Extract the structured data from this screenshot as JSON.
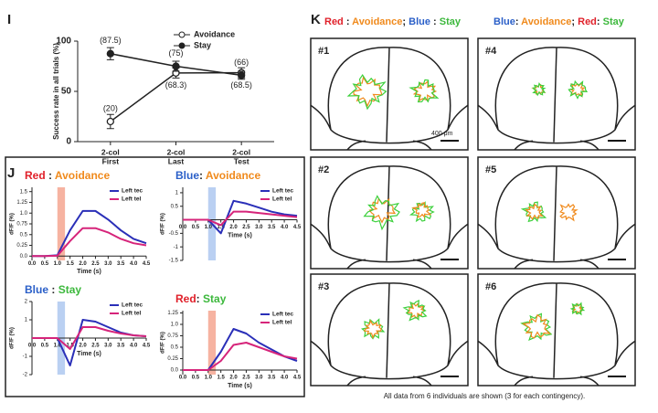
{
  "chart_data": [
    {
      "type": "line",
      "panel": "I",
      "ylabel": "Success rate in all trials (%)",
      "categories": [
        [
          "2-col",
          "First"
        ],
        [
          "2-col",
          "Last"
        ],
        [
          "2-col",
          "Test"
        ]
      ],
      "ylim": [
        0,
        100
      ],
      "yticks": [
        0,
        50,
        100
      ],
      "series": [
        {
          "name": "Avoidance",
          "color": "#222222",
          "marker": "open",
          "values": [
            20,
            68.3,
            68.5
          ],
          "errors": [
            7,
            5,
            5
          ],
          "value_labels": [
            "(20)",
            "(68.3)",
            "(68.5)"
          ]
        },
        {
          "name": "Stay",
          "color": "#222222",
          "marker": "filled",
          "values": [
            87.5,
            75,
            66
          ],
          "errors": [
            6,
            5,
            4
          ],
          "value_labels": [
            "(87.5)",
            "(75)",
            "(66)"
          ]
        }
      ]
    },
    {
      "type": "trace",
      "panel": "J",
      "title": [
        {
          "text": "Red",
          "color": "#e0202a"
        },
        {
          "text": " : ",
          "color": "#222222"
        },
        {
          "text": "Avoidance",
          "color": "#f08a1c"
        }
      ],
      "ylabel": "dF/F (%)",
      "xlabel": "Time (s)",
      "shade": {
        "x": [
          1.0,
          1.3
        ],
        "color": "#f4a08a"
      },
      "x": [
        0,
        0.5,
        1,
        1.5,
        2,
        2.5,
        3,
        3.5,
        4,
        4.5
      ],
      "xlim": [
        0,
        4.5
      ],
      "xticks": [
        {
          "value": 0,
          "label": "0.0"
        },
        0.5,
        {
          "value": 1,
          "label": "1.0"
        },
        1.5,
        {
          "value": 2,
          "label": "2.0"
        },
        2.5,
        {
          "value": 3,
          "label": "3.0"
        },
        3.5,
        {
          "value": 4,
          "label": "4.0"
        },
        4.5
      ],
      "ylim": [
        -0.1,
        1.6
      ],
      "yticks": [
        {
          "value": 0,
          "label": "0.0"
        },
        0.25,
        0.5,
        0.75,
        {
          "value": 1,
          "label": "1.0"
        },
        1.25,
        1.5
      ],
      "series": [
        {
          "name": "Left tec",
          "color": "#2a2fb8",
          "values": [
            0,
            0,
            0.02,
            0.6,
            1.05,
            1.05,
            0.85,
            0.6,
            0.4,
            0.3
          ]
        },
        {
          "name": "Left tel",
          "color": "#d6247a",
          "values": [
            0,
            0,
            0.01,
            0.35,
            0.65,
            0.65,
            0.55,
            0.4,
            0.3,
            0.25
          ]
        }
      ]
    },
    {
      "type": "trace",
      "panel": "J",
      "title": [
        {
          "text": "Blue",
          "color": "#2a5fc8"
        },
        {
          "text": ": ",
          "color": "#222222"
        },
        {
          "text": "Avoidance",
          "color": "#f08a1c"
        }
      ],
      "ylabel": "dF/F (%)",
      "xlabel": "Time (s)",
      "shade": {
        "x": [
          1.0,
          1.3
        ],
        "color": "#a9c4ef"
      },
      "x": [
        0,
        0.5,
        1,
        1.5,
        2,
        2.5,
        3,
        3.5,
        4,
        4.5
      ],
      "xlim": [
        0,
        4.5
      ],
      "xticks": [
        {
          "value": 0,
          "label": "0.0"
        },
        0.5,
        {
          "value": 1,
          "label": "1.0"
        },
        1.5,
        {
          "value": 2,
          "label": "2.0"
        },
        2.5,
        {
          "value": 3,
          "label": "3.0"
        },
        3.5,
        {
          "value": 4,
          "label": "4.0"
        },
        4.5
      ],
      "ylim": [
        -1.5,
        1.2
      ],
      "yticks": [
        -1.5,
        -1,
        -0.5,
        0.5,
        1
      ],
      "series": [
        {
          "name": "Left tec",
          "color": "#2a2fb8",
          "values": [
            0,
            0,
            0,
            -0.5,
            0.7,
            0.6,
            0.45,
            0.3,
            0.2,
            0.15
          ]
        },
        {
          "name": "Left tel",
          "color": "#d6247a",
          "values": [
            0,
            0,
            0,
            -0.2,
            0.3,
            0.3,
            0.25,
            0.2,
            0.15,
            0.1
          ]
        }
      ]
    },
    {
      "type": "trace",
      "panel": "J",
      "title": [
        {
          "text": "Blue",
          "color": "#2a5fc8"
        },
        {
          "text": " : ",
          "color": "#222222"
        },
        {
          "text": "Stay",
          "color": "#3cb83c"
        }
      ],
      "ylabel": "dF/F (%)",
      "xlabel": "Time (s)",
      "shade": {
        "x": [
          1.0,
          1.3
        ],
        "color": "#a9c4ef"
      },
      "x": [
        0,
        0.5,
        1,
        1.5,
        2,
        2.5,
        3,
        3.5,
        4,
        4.5
      ],
      "xlim": [
        0,
        4.5
      ],
      "xticks": [
        {
          "value": 0,
          "label": "0.0"
        },
        0.5,
        {
          "value": 1,
          "label": "1.0"
        },
        1.5,
        {
          "value": 2,
          "label": "2.0"
        },
        2.5,
        {
          "value": 3,
          "label": "3.0"
        },
        3.5,
        {
          "value": 4,
          "label": "4.0"
        },
        4.5
      ],
      "ylim": [
        -2,
        2
      ],
      "yticks": [
        -2,
        -1,
        1,
        2
      ],
      "series": [
        {
          "name": "Left tec",
          "color": "#2a2fb8",
          "values": [
            0,
            0,
            0,
            -1.5,
            1,
            0.9,
            0.6,
            0.3,
            0.15,
            0.1
          ]
        },
        {
          "name": "Left tel",
          "color": "#d6247a",
          "values": [
            0,
            0,
            0,
            -0.6,
            0.6,
            0.6,
            0.4,
            0.25,
            0.15,
            0.1
          ]
        }
      ]
    },
    {
      "type": "trace",
      "panel": "J",
      "title": [
        {
          "text": "Red",
          "color": "#e0202a"
        },
        {
          "text": ": ",
          "color": "#222222"
        },
        {
          "text": "Stay",
          "color": "#3cb83c"
        }
      ],
      "ylabel": "dF/F (%)",
      "xlabel": "Time (s)",
      "shade": {
        "x": [
          1.0,
          1.3
        ],
        "color": "#f4a08a"
      },
      "x": [
        0,
        0.5,
        1,
        1.5,
        2,
        2.5,
        3,
        3.5,
        4,
        4.5
      ],
      "xlim": [
        0,
        4.5
      ],
      "xticks": [
        {
          "value": 0,
          "label": "0.0"
        },
        0.5,
        {
          "value": 1,
          "label": "1.0"
        },
        1.5,
        {
          "value": 2,
          "label": "2.0"
        },
        2.5,
        {
          "value": 3,
          "label": "3.0"
        },
        3.5,
        {
          "value": 4,
          "label": "4.0"
        },
        4.5
      ],
      "ylim": [
        -0.1,
        1.3
      ],
      "yticks": [
        {
          "value": 0,
          "label": "0.0"
        },
        0.25,
        0.5,
        0.75,
        {
          "value": 1,
          "label": "1.0"
        },
        1.25
      ],
      "series": [
        {
          "name": "Left tec",
          "color": "#2a2fb8",
          "values": [
            0,
            0,
            0,
            0.4,
            0.9,
            0.8,
            0.6,
            0.45,
            0.3,
            0.2
          ]
        },
        {
          "name": "Left tel",
          "color": "#d6247a",
          "values": [
            0,
            0,
            0,
            0.2,
            0.55,
            0.6,
            0.5,
            0.4,
            0.3,
            0.25
          ]
        }
      ]
    }
  ],
  "panel_k": {
    "label": "K",
    "headings": [
      [
        {
          "text": "Red",
          "color": "#e0202a"
        },
        {
          "text": " : ",
          "color": "#222222"
        },
        {
          "text": "Avoidance",
          "color": "#f08a1c"
        },
        {
          "text": "; ",
          "color": "#222222"
        },
        {
          "text": "Blue",
          "color": "#2a5fc8"
        },
        {
          "text": " : ",
          "color": "#222222"
        },
        {
          "text": "Stay",
          "color": "#3cb83c"
        }
      ],
      [
        {
          "text": "Blue",
          "color": "#2a5fc8"
        },
        {
          "text": ": ",
          "color": "#222222"
        },
        {
          "text": "Avoidance",
          "color": "#f08a1c"
        },
        {
          "text": "; ",
          "color": "#222222"
        },
        {
          "text": "Red",
          "color": "#e0202a"
        },
        {
          "text": ": ",
          "color": "#222222"
        },
        {
          "text": "Stay",
          "color": "#3cb83c"
        }
      ]
    ],
    "images": [
      "#1",
      "#4",
      "#2",
      "#5",
      "#3",
      "#6"
    ],
    "scale": "400 μm",
    "caption": "All data from 6 individuals are shown  (3 for each contingency)."
  }
}
